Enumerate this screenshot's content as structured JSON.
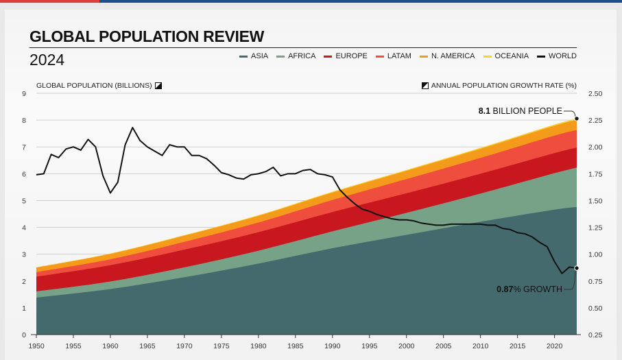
{
  "header": {
    "title": "GLOBAL POPULATION REVIEW",
    "subtitle": "2024"
  },
  "legend": [
    {
      "label": "ASIA",
      "color": "#456a6e"
    },
    {
      "label": "AFRICA",
      "color": "#77a287"
    },
    {
      "label": "EUROPE",
      "color": "#c8171e"
    },
    {
      "label": "LATAM",
      "color": "#ef4e3f"
    },
    {
      "label": "N. AMERICA",
      "color": "#f59b1c"
    },
    {
      "label": "OCEANIA",
      "color": "#f9d232"
    },
    {
      "label": "WORLD",
      "color": "#111111"
    }
  ],
  "axes": {
    "left_title": "GLOBAL POPULATION (BILLIONS)",
    "right_title": "ANNUAL POPULATION GROWTH RATE (%)"
  },
  "annotations": {
    "population_value": "8.1",
    "population_text": " BILLION PEOPLE",
    "growth_value": "0.87",
    "growth_text": "% GROWTH"
  },
  "chart_data": {
    "type": "area",
    "title": "GLOBAL POPULATION REVIEW",
    "subtitle": "2024",
    "x": [
      1950,
      1960,
      1970,
      1980,
      1990,
      2000,
      2010,
      2020,
      2023
    ],
    "xlim": [
      1950,
      2023
    ],
    "xticks": [
      1950,
      1955,
      1960,
      1965,
      1970,
      1975,
      1980,
      1985,
      1990,
      1995,
      2000,
      2005,
      2010,
      2015,
      2020
    ],
    "ylabel": "GLOBAL POPULATION (BILLIONS)",
    "ylim": [
      0,
      9
    ],
    "yticks": [
      0,
      1,
      2,
      3,
      4,
      5,
      6,
      7,
      8,
      9
    ],
    "y2label": "ANNUAL POPULATION GROWTH RATE (%)",
    "y2lim": [
      0.25,
      2.5
    ],
    "y2ticks": [
      "0.25",
      "0.50",
      "0.75",
      "1.00",
      "1.25",
      "1.50",
      "1.75",
      "2.00",
      "2.25",
      "2.50"
    ],
    "stack_order": [
      "ASIA",
      "AFRICA",
      "EUROPE",
      "LATAM",
      "N. AMERICA",
      "OCEANIA"
    ],
    "series": [
      {
        "name": "ASIA",
        "color": "#456a6e",
        "values": [
          1.38,
          1.7,
          2.14,
          2.65,
          3.22,
          3.72,
          4.21,
          4.66,
          4.76
        ]
      },
      {
        "name": "AFRICA",
        "color": "#77a287",
        "values": [
          0.23,
          0.28,
          0.37,
          0.48,
          0.63,
          0.82,
          1.05,
          1.36,
          1.47
        ]
      },
      {
        "name": "EUROPE",
        "color": "#c8171e",
        "values": [
          0.55,
          0.61,
          0.66,
          0.69,
          0.72,
          0.73,
          0.74,
          0.75,
          0.74
        ]
      },
      {
        "name": "LATAM",
        "color": "#ef4e3f",
        "values": [
          0.17,
          0.22,
          0.29,
          0.36,
          0.45,
          0.53,
          0.59,
          0.65,
          0.66
        ]
      },
      {
        "name": "N. AMERICA",
        "color": "#f59b1c",
        "values": [
          0.17,
          0.2,
          0.23,
          0.25,
          0.28,
          0.31,
          0.34,
          0.37,
          0.38
        ]
      },
      {
        "name": "OCEANIA",
        "color": "#f9d232",
        "values": [
          0.013,
          0.016,
          0.02,
          0.023,
          0.027,
          0.031,
          0.037,
          0.043,
          0.045
        ]
      }
    ],
    "world_growth": {
      "name": "WORLD",
      "axis": "right",
      "color": "#111111",
      "x": [
        1950,
        1951,
        1952,
        1953,
        1954,
        1955,
        1956,
        1957,
        1958,
        1959,
        1960,
        1961,
        1962,
        1963,
        1964,
        1965,
        1966,
        1967,
        1968,
        1969,
        1970,
        1971,
        1972,
        1973,
        1974,
        1975,
        1976,
        1977,
        1978,
        1979,
        1980,
        1981,
        1982,
        1983,
        1984,
        1985,
        1986,
        1987,
        1988,
        1989,
        1990,
        1991,
        1992,
        1993,
        1994,
        1995,
        1996,
        1997,
        1998,
        1999,
        2000,
        2001,
        2002,
        2003,
        2004,
        2005,
        2006,
        2007,
        2008,
        2009,
        2010,
        2011,
        2012,
        2013,
        2014,
        2015,
        2016,
        2017,
        2018,
        2019,
        2020,
        2021,
        2022,
        2023
      ],
      "values": [
        1.74,
        1.75,
        1.93,
        1.9,
        1.98,
        2.0,
        1.97,
        2.07,
        2.0,
        1.73,
        1.57,
        1.67,
        2.02,
        2.18,
        2.06,
        2.0,
        1.96,
        1.92,
        2.02,
        2.0,
        2.0,
        1.92,
        1.92,
        1.89,
        1.83,
        1.76,
        1.74,
        1.71,
        1.7,
        1.74,
        1.75,
        1.77,
        1.81,
        1.73,
        1.75,
        1.75,
        1.78,
        1.79,
        1.75,
        1.74,
        1.72,
        1.6,
        1.53,
        1.47,
        1.42,
        1.4,
        1.37,
        1.35,
        1.33,
        1.32,
        1.32,
        1.31,
        1.29,
        1.28,
        1.27,
        1.27,
        1.28,
        1.28,
        1.28,
        1.28,
        1.28,
        1.27,
        1.27,
        1.24,
        1.23,
        1.2,
        1.19,
        1.16,
        1.11,
        1.07,
        0.93,
        0.82,
        0.88,
        0.87
      ]
    }
  }
}
